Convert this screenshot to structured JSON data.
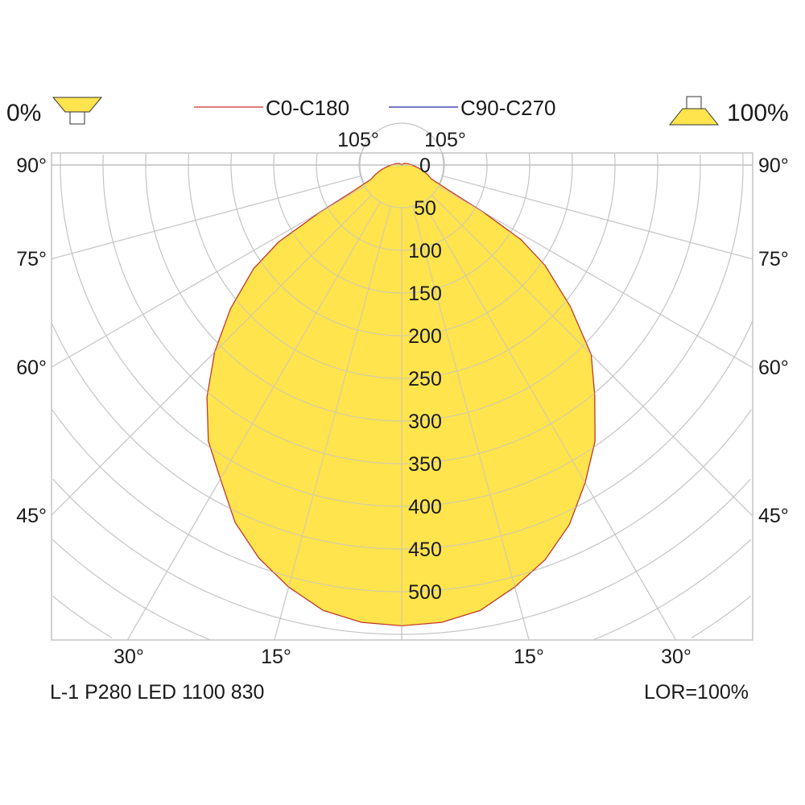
{
  "chart_data": {
    "type": "polar",
    "legend": {
      "left_label": "0%",
      "right_label": "100%",
      "left_icon": "downlight-luminaire-icon",
      "right_icon": "uplight-luminaire-icon",
      "series": [
        {
          "name": "C0-C180",
          "color": "#d9534f"
        },
        {
          "name": "C90-C270",
          "color": "#4a4ab8"
        }
      ]
    },
    "radial_ticks": [
      "0",
      "50",
      "100",
      "150",
      "200",
      "250",
      "300",
      "350",
      "400",
      "450",
      "500"
    ],
    "radial_step": 50,
    "angle_labels": {
      "top": [
        "105°",
        "105°"
      ],
      "left": [
        "90°",
        "75°",
        "60°",
        "45°"
      ],
      "right": [
        "90°",
        "75°",
        "60°",
        "45°"
      ],
      "bottom": [
        "30°",
        "15°",
        "15°",
        "30°"
      ]
    },
    "angular_grid_step_deg": 15,
    "grid": true,
    "fill_color": "#ffe44d",
    "outline_color": "#c0392b",
    "grid_color": "#c4c4c4",
    "series": [
      {
        "name": "C0-C180",
        "angles_deg": [
          0,
          5,
          10,
          15,
          20,
          25,
          30,
          35,
          40,
          45,
          50,
          55,
          58,
          60,
          62,
          65,
          70,
          75,
          80,
          85,
          90,
          100,
          120,
          150,
          180
        ],
        "right_values_cd": [
          540,
          538,
          530,
          512,
          492,
          465,
          430,
          395,
          352,
          314,
          258,
          205,
          165,
          110,
          60,
          38,
          32,
          26,
          20,
          15,
          12,
          8,
          4,
          1,
          0
        ],
        "left_values_cd": [
          540,
          538,
          530,
          512,
          490,
          462,
          425,
          395,
          355,
          310,
          262,
          212,
          170,
          112,
          62,
          40,
          33,
          27,
          21,
          16,
          12,
          8,
          4,
          1,
          0
        ]
      }
    ],
    "footer_left": "L-1 P280 LED 1100 830",
    "footer_right": "LOR=100%"
  }
}
